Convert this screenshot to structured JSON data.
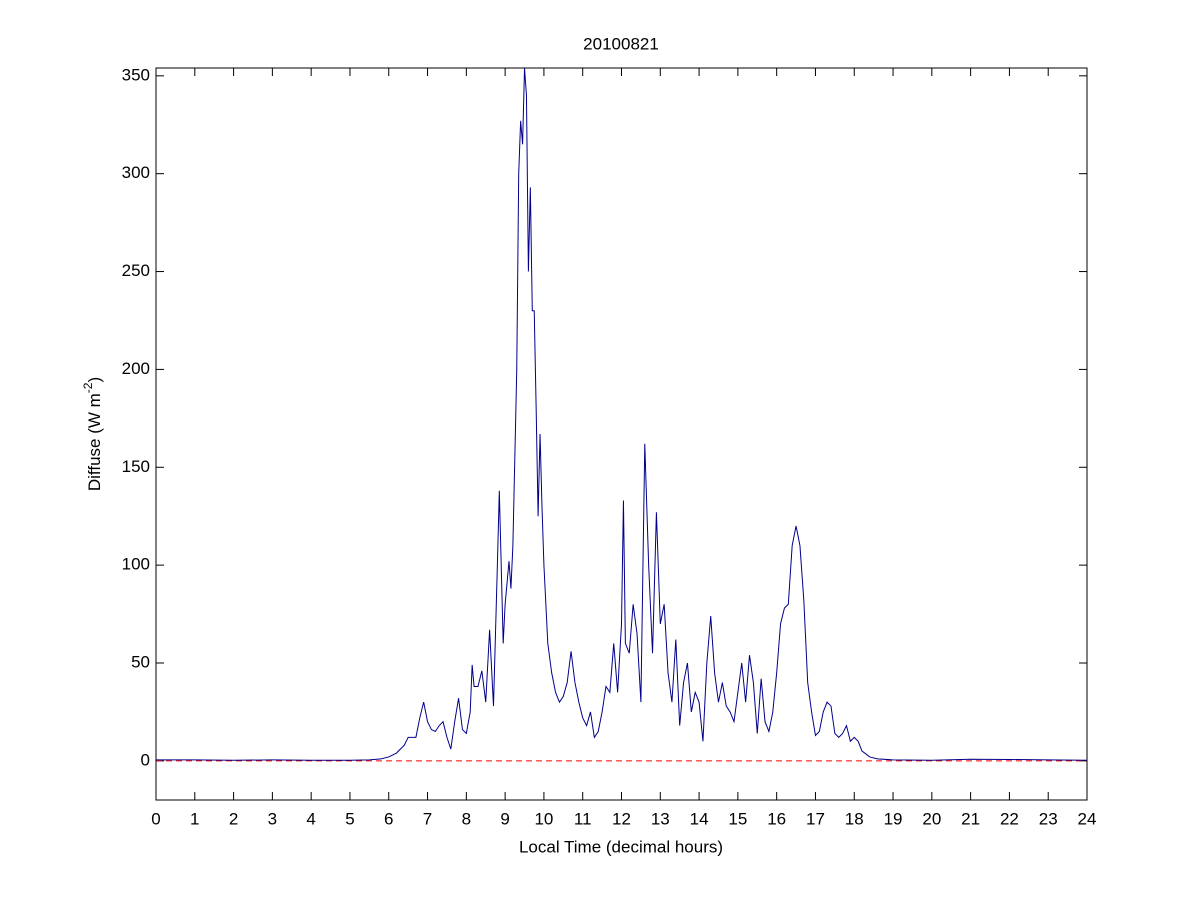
{
  "chart_data": {
    "type": "line",
    "title": "20100821",
    "xlabel": "Local Time (decimal hours)",
    "ylabel": "Diffuse (W m",
    "ylabel_superscript": "-2",
    "ylabel_end": ")",
    "xlim": [
      0,
      24
    ],
    "ylim": [
      -20,
      354
    ],
    "xticks": [
      0,
      1,
      2,
      3,
      4,
      5,
      6,
      7,
      8,
      9,
      10,
      11,
      12,
      13,
      14,
      15,
      16,
      17,
      18,
      19,
      20,
      21,
      22,
      23,
      24
    ],
    "yticks": [
      0,
      50,
      100,
      150,
      200,
      250,
      300,
      350
    ],
    "grid": false,
    "reference_line": {
      "value": 0,
      "color": "#ff0000",
      "style": "dashed"
    },
    "series": [
      {
        "name": "Diffuse",
        "color": "#00008b",
        "x": [
          0,
          1,
          2,
          3,
          4,
          5,
          5.5,
          5.8,
          6,
          6.2,
          6.4,
          6.5,
          6.7,
          6.8,
          6.9,
          7,
          7.1,
          7.2,
          7.3,
          7.4,
          7.5,
          7.6,
          7.7,
          7.8,
          7.9,
          8,
          8.1,
          8.15,
          8.2,
          8.3,
          8.4,
          8.5,
          8.6,
          8.7,
          8.8,
          8.85,
          8.95,
          9,
          9.1,
          9.15,
          9.2,
          9.3,
          9.35,
          9.4,
          9.45,
          9.5,
          9.55,
          9.6,
          9.65,
          9.7,
          9.75,
          9.8,
          9.85,
          9.9,
          9.95,
          10,
          10.1,
          10.2,
          10.3,
          10.4,
          10.5,
          10.6,
          10.7,
          10.8,
          10.9,
          11,
          11.1,
          11.2,
          11.3,
          11.4,
          11.5,
          11.6,
          11.7,
          11.8,
          11.9,
          12,
          12.05,
          12.1,
          12.2,
          12.3,
          12.4,
          12.5,
          12.6,
          12.7,
          12.8,
          12.9,
          13,
          13.1,
          13.2,
          13.3,
          13.4,
          13.5,
          13.6,
          13.7,
          13.8,
          13.9,
          14,
          14.1,
          14.2,
          14.3,
          14.4,
          14.5,
          14.6,
          14.7,
          14.8,
          14.9,
          15,
          15.1,
          15.2,
          15.3,
          15.4,
          15.5,
          15.6,
          15.7,
          15.8,
          15.9,
          16,
          16.1,
          16.2,
          16.3,
          16.4,
          16.5,
          16.6,
          16.7,
          16.8,
          16.9,
          17,
          17.1,
          17.2,
          17.3,
          17.4,
          17.5,
          17.6,
          17.7,
          17.8,
          17.9,
          18,
          18.1,
          18.2,
          18.4,
          18.6,
          19,
          20,
          21,
          22,
          23,
          24
        ],
        "values": [
          0.5,
          0.5,
          0.3,
          0.5,
          0.3,
          0.3,
          0.5,
          1,
          2,
          4,
          8,
          12,
          12,
          22,
          30,
          20,
          16,
          15,
          18,
          20,
          12,
          6,
          20,
          32,
          16,
          14,
          25,
          49,
          38,
          38,
          46,
          30,
          67,
          28,
          100,
          138,
          60,
          80,
          102,
          88,
          110,
          200,
          300,
          327,
          315,
          354,
          340,
          250,
          293,
          230,
          230,
          180,
          125,
          167,
          130,
          100,
          60,
          45,
          35,
          30,
          33,
          40,
          56,
          40,
          30,
          22,
          18,
          25,
          12,
          15,
          25,
          38,
          35,
          60,
          35,
          70,
          133,
          60,
          55,
          80,
          65,
          30,
          162,
          100,
          55,
          127,
          70,
          80,
          45,
          30,
          62,
          18,
          40,
          50,
          25,
          35,
          30,
          10,
          50,
          74,
          45,
          30,
          40,
          28,
          25,
          20,
          35,
          50,
          30,
          54,
          40,
          14,
          42,
          20,
          15,
          25,
          45,
          70,
          78,
          80,
          110,
          120,
          110,
          82,
          40,
          25,
          13,
          15,
          25,
          30,
          28,
          14,
          12,
          14,
          18,
          10,
          12,
          10,
          5,
          2,
          1,
          0.5,
          0.3,
          0.8,
          0.7,
          0.5,
          0.3
        ]
      }
    ]
  }
}
